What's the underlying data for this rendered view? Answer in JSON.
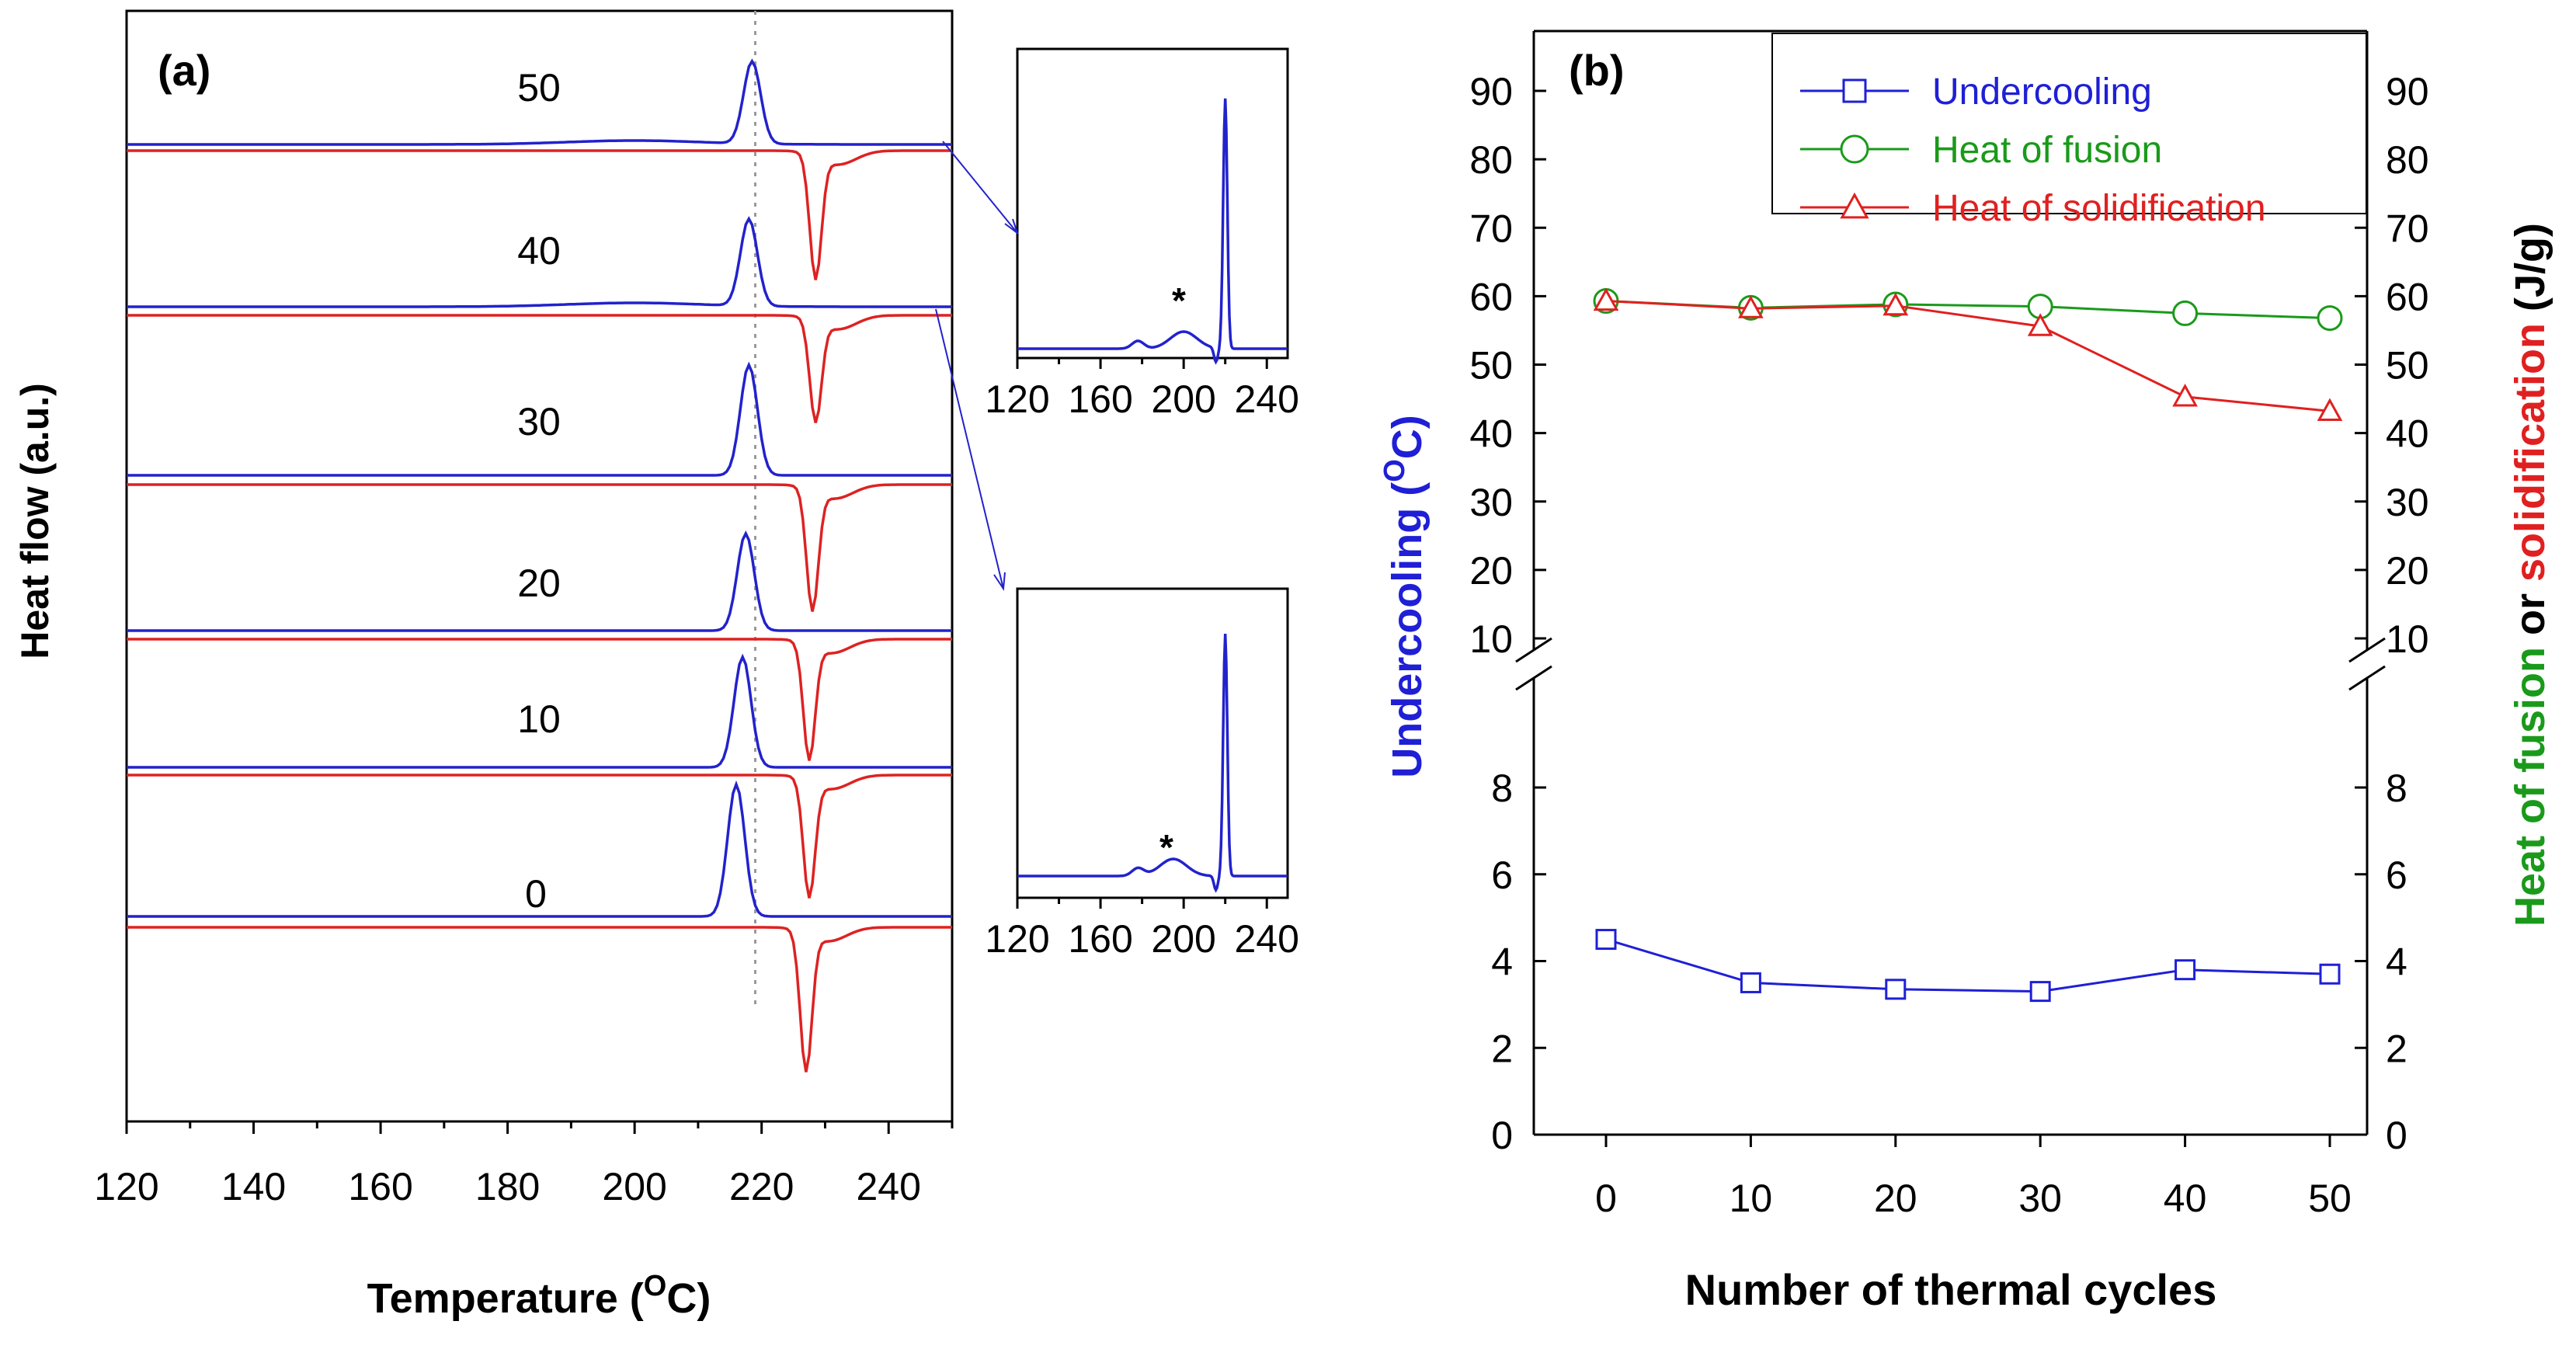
{
  "chart_data": [
    {
      "panel_label": "(a)",
      "type": "line",
      "xlabel_main": "Temperature (",
      "xlabel_sup": "O",
      "xlabel_tail": "C)",
      "ylabel": "Heat flow (a.u.)",
      "xlim": [
        120,
        250
      ],
      "xticks": [
        "120",
        "140",
        "160",
        "180",
        "200",
        "220",
        "240"
      ],
      "reference_line_x": 219,
      "curve_labels": [
        "50",
        "40",
        "30",
        "20",
        "10",
        "0"
      ],
      "heating_color": "#2222cc",
      "cooling_color": "#dd2222",
      "traces": [
        {
          "cycles": "50",
          "heating_peak_x": 218.5,
          "cooling_peak_x": 228.5
        },
        {
          "cycles": "40",
          "heating_peak_x": 218.0,
          "cooling_peak_x": 228.5
        },
        {
          "cycles": "30",
          "heating_peak_x": 218.0,
          "cooling_peak_x": 228.0
        },
        {
          "cycles": "20",
          "heating_peak_x": 217.5,
          "cooling_peak_x": 227.5
        },
        {
          "cycles": "10",
          "heating_peak_x": 217.0,
          "cooling_peak_x": 227.5
        },
        {
          "cycles": "0",
          "heating_peak_x": 216.0,
          "cooling_peak_x": 227.0
        }
      ],
      "insets": [
        {
          "xticks": [
            "120",
            "160",
            "200",
            "240"
          ],
          "xlim": [
            120,
            250
          ],
          "marker_text": "*",
          "peak_x": 220,
          "shoulder_x": 200
        },
        {
          "xticks": [
            "120",
            "160",
            "200",
            "240"
          ],
          "xlim": [
            120,
            250
          ],
          "marker_text": "*",
          "peak_x": 220,
          "shoulder_x": 195
        }
      ]
    },
    {
      "panel_label": "(b)",
      "type": "line",
      "xlabel": "Number of thermal cycles",
      "ylabel_left_main": "Undercooling (",
      "ylabel_left_sup": "O",
      "ylabel_left_tail": "C)",
      "ylabel_right_part1": "Heat of fusion",
      "ylabel_right_part2": " or ",
      "ylabel_right_part3": "solidification",
      "ylabel_right_part4": " (J/g)",
      "x": [
        0,
        10,
        20,
        30,
        40,
        50
      ],
      "xticks": [
        "0",
        "10",
        "20",
        "30",
        "40",
        "50"
      ],
      "y_upper_ticks": [
        "10",
        "20",
        "30",
        "40",
        "50",
        "60",
        "70",
        "80",
        "90"
      ],
      "y_lower_ticks": [
        "0",
        "2",
        "4",
        "6",
        "8"
      ],
      "y_upper_range": [
        10,
        90
      ],
      "y_lower_range": [
        0,
        8
      ],
      "legend_position": "top-right",
      "series": [
        {
          "name": "Undercooling",
          "marker": "square",
          "color": "#1f1fd6",
          "values": [
            4.5,
            3.5,
            3.35,
            3.3,
            3.8,
            3.7
          ]
        },
        {
          "name": "Heat of fusion",
          "marker": "circle",
          "color": "#1a9a1a",
          "values": [
            59.3,
            58.3,
            58.8,
            58.5,
            57.5,
            56.8
          ]
        },
        {
          "name": "Heat of solidification",
          "marker": "triangle",
          "color": "#e02020",
          "values": [
            59.3,
            58.2,
            58.6,
            55.6,
            45.3,
            43.2
          ]
        }
      ]
    }
  ]
}
